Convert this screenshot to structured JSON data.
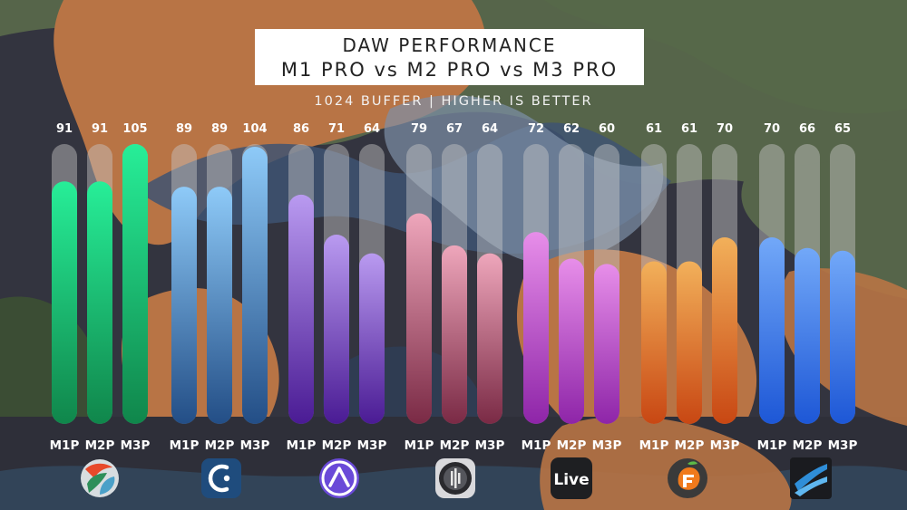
{
  "title_line1": "DAW PERFORMANCE",
  "title_line2": "M1 PRO vs M2 PRO vs M3 PRO",
  "subtitle": "1024 BUFFER | HIGHER IS BETTER",
  "logos": {
    "live_text": "Live"
  },
  "chart_data": {
    "type": "bar",
    "title": "DAW PERFORMANCE M1 PRO vs M2 PRO vs M3 PRO",
    "subtitle": "1024 BUFFER | HIGHER IS BETTER",
    "categories": [
      "M1P",
      "M2P",
      "M3P"
    ],
    "ylim": [
      0,
      105
    ],
    "grid": false,
    "legend": "none",
    "groups": [
      {
        "logo": "reaper-logo",
        "values": [
          91,
          91,
          105
        ],
        "color_top": "#27ee98",
        "color_bottom": "#10864b"
      },
      {
        "logo": "cubase-logo",
        "values": [
          89,
          89,
          104
        ],
        "color_top": "#8ecaf8",
        "color_bottom": "#234e86"
      },
      {
        "logo": "pro-tools-logo",
        "values": [
          86,
          71,
          64
        ],
        "color_top": "#b99af0",
        "color_bottom": "#4a1b94"
      },
      {
        "logo": "logic-pro-logo",
        "values": [
          79,
          67,
          64
        ],
        "color_top": "#eea6bb",
        "color_bottom": "#7a2a45"
      },
      {
        "logo": "ableton-live-logo",
        "values": [
          72,
          62,
          60
        ],
        "color_top": "#e78ee9",
        "color_bottom": "#8e25a8"
      },
      {
        "logo": "fl-studio-logo",
        "values": [
          61,
          61,
          70
        ],
        "color_top": "#f2b05a",
        "color_bottom": "#c84713"
      },
      {
        "logo": "studio-one-logo",
        "values": [
          70,
          66,
          65
        ],
        "color_top": "#72a8f8",
        "color_bottom": "#1d57d6"
      }
    ]
  }
}
